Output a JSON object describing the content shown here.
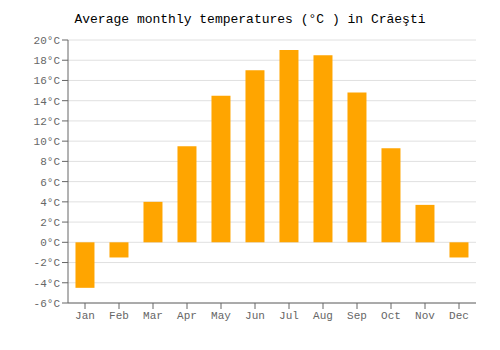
{
  "chart_data": {
    "type": "bar",
    "title": "Average monthly temperatures (°C ) in Crăeşti",
    "categories": [
      "Jan",
      "Feb",
      "Mar",
      "Apr",
      "May",
      "Jun",
      "Jul",
      "Aug",
      "Sep",
      "Oct",
      "Nov",
      "Dec"
    ],
    "values": [
      -4.5,
      -1.5,
      4.0,
      9.5,
      14.5,
      17.0,
      19.0,
      18.5,
      14.8,
      9.3,
      3.7,
      -1.5
    ],
    "color": "#FFA500",
    "ylim": [
      -6,
      20
    ],
    "yticks": [
      {
        "value": -6,
        "label": "-6°C"
      },
      {
        "value": -4,
        "label": "-4°C"
      },
      {
        "value": -2,
        "label": "-2°C"
      },
      {
        "value": 0,
        "label": "0°C"
      },
      {
        "value": 2,
        "label": "2°C"
      },
      {
        "value": 4,
        "label": "4°C"
      },
      {
        "value": 6,
        "label": "6°C"
      },
      {
        "value": 8,
        "label": "8°C"
      },
      {
        "value": 10,
        "label": "10°C"
      },
      {
        "value": 12,
        "label": "12°C"
      },
      {
        "value": 14,
        "label": "14°C"
      },
      {
        "value": 16,
        "label": "16°C"
      },
      {
        "value": 18,
        "label": "18°C"
      },
      {
        "value": 20,
        "label": "20°C"
      }
    ],
    "grid": true
  }
}
